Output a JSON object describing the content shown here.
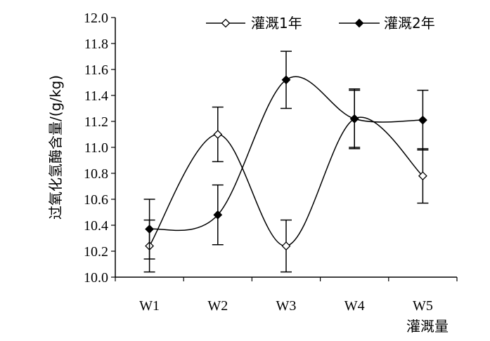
{
  "chart_data": {
    "type": "line",
    "categories": [
      "W1",
      "W2",
      "W3",
      "W4",
      "W5"
    ],
    "xlabel": "灌溉量",
    "ylabel": "过氧化氢酶含量/(g/kg)",
    "ylim": [
      10.0,
      12.0
    ],
    "yticks": [
      "10.0",
      "10.2",
      "10.4",
      "10.6",
      "10.8",
      "11.0",
      "11.2",
      "11.4",
      "11.6",
      "11.8",
      "12.0"
    ],
    "grid": false,
    "legend_position": "top",
    "series": [
      {
        "name": "灌溉1年",
        "marker": "open-diamond",
        "values": [
          10.24,
          11.1,
          10.24,
          11.22,
          10.78
        ],
        "error": [
          0.2,
          0.21,
          0.2,
          0.22,
          0.21
        ]
      },
      {
        "name": "灌溉2年",
        "marker": "filled-diamond",
        "values": [
          10.37,
          10.48,
          11.52,
          11.22,
          11.21
        ],
        "error": [
          0.23,
          0.23,
          0.22,
          0.23,
          0.23
        ]
      }
    ],
    "colors": {
      "line": "#000000",
      "open_marker_fill": "#ffffff",
      "filled_marker_fill": "#000000"
    }
  }
}
